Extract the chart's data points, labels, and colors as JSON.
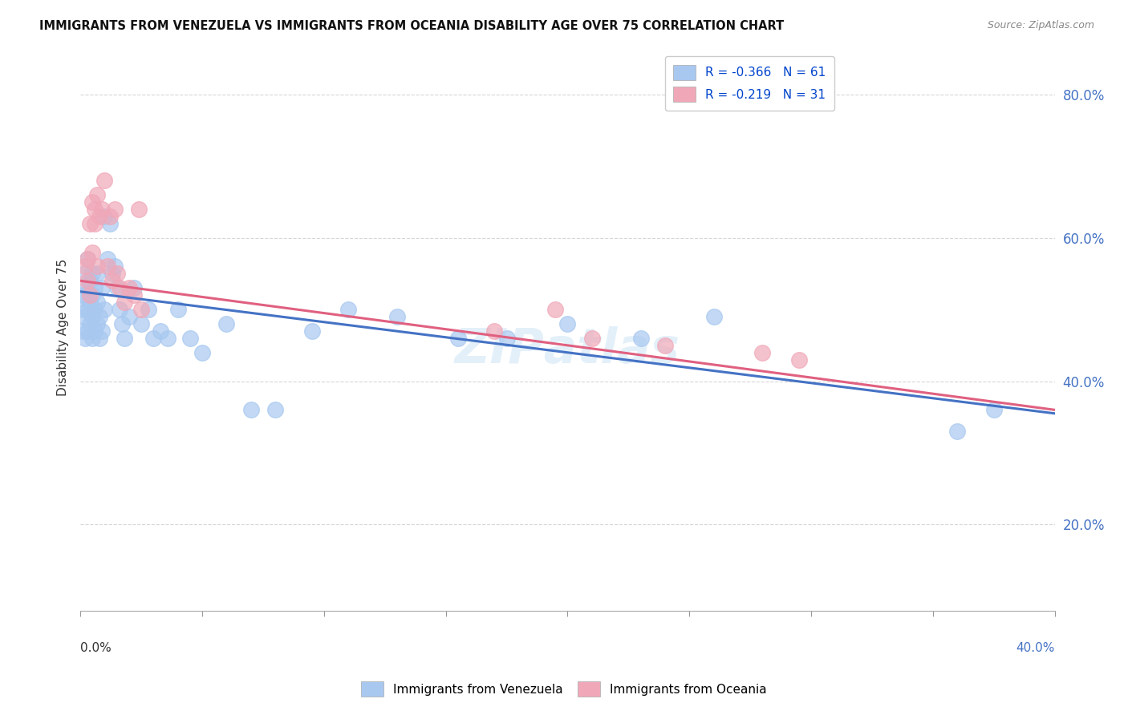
{
  "title": "IMMIGRANTS FROM VENEZUELA VS IMMIGRANTS FROM OCEANIA DISABILITY AGE OVER 75 CORRELATION CHART",
  "source": "Source: ZipAtlas.com",
  "ylabel": "Disability Age Over 75",
  "xlim": [
    0.0,
    0.4
  ],
  "ylim": [
    0.08,
    0.87
  ],
  "yticks": [
    0.2,
    0.4,
    0.6,
    0.8
  ],
  "ytick_labels": [
    "20.0%",
    "40.0%",
    "60.0%",
    "80.0%"
  ],
  "xticks": [
    0.0,
    0.05,
    0.1,
    0.15,
    0.2,
    0.25,
    0.3,
    0.35,
    0.4
  ],
  "legend_blue_label": "R = -0.366   N = 61",
  "legend_pink_label": "R = -0.219   N = 31",
  "color_blue": "#a8c8f0",
  "color_pink": "#f0a8b8",
  "color_blue_line": "#4472c4",
  "color_pink_line": "#e06080",
  "ven_line_x0": 0.0,
  "ven_line_y0": 0.525,
  "ven_line_x1": 0.4,
  "ven_line_y1": 0.355,
  "oce_line_x0": 0.0,
  "oce_line_y0": 0.54,
  "oce_line_x1": 0.4,
  "oce_line_y1": 0.36,
  "venezuela_x": [
    0.001,
    0.001,
    0.001,
    0.002,
    0.002,
    0.002,
    0.002,
    0.003,
    0.003,
    0.003,
    0.003,
    0.004,
    0.004,
    0.004,
    0.005,
    0.005,
    0.005,
    0.005,
    0.006,
    0.006,
    0.006,
    0.007,
    0.007,
    0.007,
    0.008,
    0.008,
    0.009,
    0.009,
    0.01,
    0.01,
    0.011,
    0.012,
    0.013,
    0.014,
    0.015,
    0.016,
    0.017,
    0.018,
    0.02,
    0.022,
    0.025,
    0.028,
    0.03,
    0.033,
    0.036,
    0.04,
    0.045,
    0.05,
    0.06,
    0.07,
    0.08,
    0.095,
    0.11,
    0.13,
    0.155,
    0.175,
    0.2,
    0.23,
    0.26,
    0.36,
    0.375
  ],
  "venezuela_y": [
    0.47,
    0.5,
    0.52,
    0.46,
    0.49,
    0.52,
    0.55,
    0.47,
    0.5,
    0.53,
    0.57,
    0.48,
    0.51,
    0.54,
    0.46,
    0.49,
    0.52,
    0.55,
    0.47,
    0.5,
    0.53,
    0.48,
    0.51,
    0.55,
    0.46,
    0.49,
    0.47,
    0.53,
    0.5,
    0.63,
    0.57,
    0.62,
    0.55,
    0.56,
    0.53,
    0.5,
    0.48,
    0.46,
    0.49,
    0.53,
    0.48,
    0.5,
    0.46,
    0.47,
    0.46,
    0.5,
    0.46,
    0.44,
    0.48,
    0.36,
    0.36,
    0.47,
    0.5,
    0.49,
    0.46,
    0.46,
    0.48,
    0.46,
    0.49,
    0.33,
    0.36
  ],
  "oceania_x": [
    0.002,
    0.003,
    0.003,
    0.004,
    0.004,
    0.005,
    0.005,
    0.006,
    0.006,
    0.007,
    0.007,
    0.008,
    0.009,
    0.01,
    0.011,
    0.012,
    0.013,
    0.014,
    0.015,
    0.016,
    0.018,
    0.02,
    0.022,
    0.024,
    0.025,
    0.17,
    0.195,
    0.21,
    0.24,
    0.28,
    0.295
  ],
  "oceania_y": [
    0.56,
    0.54,
    0.57,
    0.52,
    0.62,
    0.58,
    0.65,
    0.62,
    0.64,
    0.56,
    0.66,
    0.63,
    0.64,
    0.68,
    0.56,
    0.63,
    0.54,
    0.64,
    0.55,
    0.53,
    0.51,
    0.53,
    0.52,
    0.64,
    0.5,
    0.47,
    0.5,
    0.46,
    0.45,
    0.44,
    0.43
  ]
}
